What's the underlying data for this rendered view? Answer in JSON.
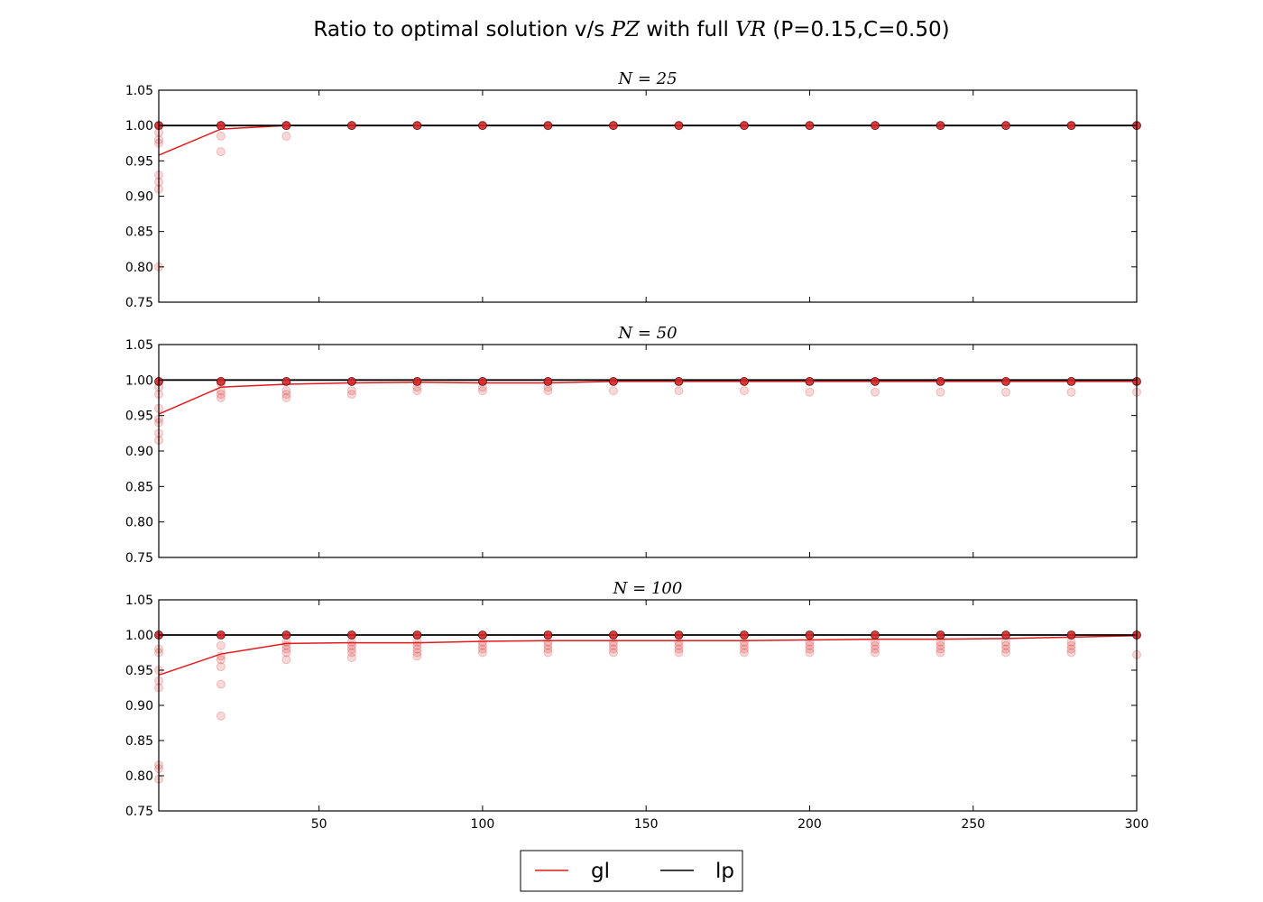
{
  "figure": {
    "title_plain": "Ratio to optimal solution v/s ",
    "title_pz": "PZ",
    "title_mid": " with full ",
    "title_vr": "VR",
    "title_params": " (P=0.15,C=0.50)"
  },
  "legend": [
    {
      "label": "gl",
      "color": "#e41a1c"
    },
    {
      "label": "lp",
      "color": "#000000"
    }
  ],
  "colors": {
    "gl": "#e41a1c",
    "lp": "#000000",
    "points": "#d62728"
  },
  "chart_data": [
    {
      "type": "line",
      "title": "N = 25",
      "xlim": [
        1,
        300
      ],
      "ylim": [
        0.75,
        1.05
      ],
      "yticks": [
        "0.75",
        "0.80",
        "0.85",
        "0.90",
        "0.95",
        "1.00",
        "1.05"
      ],
      "xticks": [],
      "x": [
        1,
        20,
        40,
        60,
        80,
        100,
        120,
        140,
        160,
        180,
        200,
        220,
        240,
        260,
        280,
        300
      ],
      "series": [
        {
          "name": "gl",
          "values": [
            0.958,
            0.995,
            1.0,
            1.0,
            1.0,
            1.0,
            1.0,
            1.0,
            1.0,
            1.0,
            1.0,
            1.0,
            1.0,
            1.0,
            1.0,
            1.0
          ]
        },
        {
          "name": "lp",
          "values": [
            1.0,
            1.0,
            1.0,
            1.0,
            1.0,
            1.0,
            1.0,
            1.0,
            1.0,
            1.0,
            1.0,
            1.0,
            1.0,
            1.0,
            1.0,
            1.0
          ]
        }
      ],
      "samples": [
        [
          1,
          0.99
        ],
        [
          1,
          0.975
        ],
        [
          1,
          0.98
        ],
        [
          1,
          0.93
        ],
        [
          1,
          0.92
        ],
        [
          1,
          0.91
        ],
        [
          1,
          0.8
        ],
        [
          20,
          1.0
        ],
        [
          20,
          0.985
        ],
        [
          20,
          0.963
        ],
        [
          40,
          1.0
        ],
        [
          40,
          0.985
        ]
      ],
      "points": [
        [
          1,
          1.0
        ],
        [
          20,
          1.0
        ],
        [
          40,
          1.0
        ],
        [
          60,
          1.0
        ],
        [
          80,
          1.0
        ],
        [
          100,
          1.0
        ],
        [
          120,
          1.0
        ],
        [
          140,
          1.0
        ],
        [
          160,
          1.0
        ],
        [
          180,
          1.0
        ],
        [
          200,
          1.0
        ],
        [
          220,
          1.0
        ],
        [
          240,
          1.0
        ],
        [
          260,
          1.0
        ],
        [
          280,
          1.0
        ],
        [
          300,
          1.0
        ]
      ]
    },
    {
      "type": "line",
      "title": "N = 50",
      "xlim": [
        1,
        300
      ],
      "ylim": [
        0.75,
        1.05
      ],
      "yticks": [
        "0.75",
        "0.80",
        "0.85",
        "0.90",
        "0.95",
        "1.00",
        "1.05"
      ],
      "xticks": [],
      "x": [
        1,
        20,
        40,
        60,
        80,
        100,
        120,
        140,
        160,
        180,
        200,
        220,
        240,
        260,
        280,
        300
      ],
      "series": [
        {
          "name": "gl",
          "values": [
            0.952,
            0.99,
            0.994,
            0.996,
            0.997,
            0.996,
            0.996,
            0.998,
            0.998,
            0.998,
            0.998,
            0.998,
            0.998,
            0.998,
            0.998,
            0.998
          ]
        },
        {
          "name": "lp",
          "values": [
            1.0,
            1.0,
            1.0,
            1.0,
            1.0,
            1.0,
            1.0,
            1.0,
            1.0,
            1.0,
            1.0,
            1.0,
            1.0,
            1.0,
            1.0,
            1.0
          ]
        }
      ],
      "samples": [
        [
          1,
          0.99
        ],
        [
          1,
          0.98
        ],
        [
          1,
          0.96
        ],
        [
          1,
          0.945
        ],
        [
          1,
          0.94
        ],
        [
          1,
          0.925
        ],
        [
          1,
          0.915
        ],
        [
          20,
          0.995
        ],
        [
          20,
          0.985
        ],
        [
          20,
          0.98
        ],
        [
          20,
          0.975
        ],
        [
          40,
          0.985
        ],
        [
          40,
          0.98
        ],
        [
          40,
          0.975
        ],
        [
          60,
          0.985
        ],
        [
          60,
          0.98
        ],
        [
          80,
          0.99
        ],
        [
          80,
          0.985
        ],
        [
          100,
          0.99
        ],
        [
          100,
          0.985
        ],
        [
          120,
          0.99
        ],
        [
          120,
          0.985
        ],
        [
          140,
          0.985
        ],
        [
          160,
          0.985
        ],
        [
          180,
          0.985
        ],
        [
          200,
          0.983
        ],
        [
          220,
          0.983
        ],
        [
          240,
          0.983
        ],
        [
          260,
          0.983
        ],
        [
          280,
          0.983
        ],
        [
          300,
          0.983
        ]
      ],
      "points": [
        [
          1,
          0.998
        ],
        [
          20,
          0.998
        ],
        [
          40,
          0.998
        ],
        [
          60,
          0.998
        ],
        [
          80,
          0.998
        ],
        [
          100,
          0.998
        ],
        [
          120,
          0.998
        ],
        [
          140,
          0.998
        ],
        [
          160,
          0.998
        ],
        [
          180,
          0.998
        ],
        [
          200,
          0.998
        ],
        [
          220,
          0.998
        ],
        [
          240,
          0.998
        ],
        [
          260,
          0.998
        ],
        [
          280,
          0.998
        ],
        [
          300,
          0.998
        ]
      ]
    },
    {
      "type": "line",
      "title": "N = 100",
      "xlim": [
        1,
        300
      ],
      "ylim": [
        0.75,
        1.05
      ],
      "yticks": [
        "0.75",
        "0.80",
        "0.85",
        "0.90",
        "0.95",
        "1.00",
        "1.05"
      ],
      "xticks": [
        "50",
        "100",
        "150",
        "200",
        "250",
        "300"
      ],
      "xtick_values": [
        50,
        100,
        150,
        200,
        250,
        300
      ],
      "x": [
        1,
        20,
        40,
        60,
        80,
        100,
        120,
        140,
        160,
        180,
        200,
        220,
        240,
        260,
        280,
        300
      ],
      "series": [
        {
          "name": "gl",
          "values": [
            0.943,
            0.973,
            0.988,
            0.989,
            0.989,
            0.991,
            0.992,
            0.992,
            0.992,
            0.992,
            0.993,
            0.994,
            0.994,
            0.995,
            0.997,
            0.999
          ]
        },
        {
          "name": "lp",
          "values": [
            1.0,
            1.0,
            1.0,
            1.0,
            1.0,
            1.0,
            1.0,
            1.0,
            1.0,
            1.0,
            1.0,
            1.0,
            1.0,
            1.0,
            1.0,
            1.0
          ]
        }
      ],
      "samples": [
        [
          1,
          0.98
        ],
        [
          1,
          0.975
        ],
        [
          1,
          0.95
        ],
        [
          1,
          0.935
        ],
        [
          1,
          0.925
        ],
        [
          1,
          0.815
        ],
        [
          1,
          0.81
        ],
        [
          1,
          0.795
        ],
        [
          20,
          0.985
        ],
        [
          20,
          0.97
        ],
        [
          20,
          0.965
        ],
        [
          20,
          0.955
        ],
        [
          20,
          0.93
        ],
        [
          20,
          0.885
        ],
        [
          40,
          0.99
        ],
        [
          40,
          0.985
        ],
        [
          40,
          0.98
        ],
        [
          40,
          0.975
        ],
        [
          40,
          0.965
        ],
        [
          60,
          0.99
        ],
        [
          60,
          0.985
        ],
        [
          60,
          0.98
        ],
        [
          60,
          0.975
        ],
        [
          60,
          0.968
        ],
        [
          80,
          0.99
        ],
        [
          80,
          0.985
        ],
        [
          80,
          0.98
        ],
        [
          80,
          0.975
        ],
        [
          80,
          0.97
        ],
        [
          100,
          0.99
        ],
        [
          100,
          0.985
        ],
        [
          100,
          0.98
        ],
        [
          100,
          0.975
        ],
        [
          120,
          0.99
        ],
        [
          120,
          0.985
        ],
        [
          120,
          0.98
        ],
        [
          120,
          0.975
        ],
        [
          140,
          0.99
        ],
        [
          140,
          0.985
        ],
        [
          140,
          0.98
        ],
        [
          140,
          0.975
        ],
        [
          160,
          0.99
        ],
        [
          160,
          0.985
        ],
        [
          160,
          0.98
        ],
        [
          160,
          0.975
        ],
        [
          180,
          0.99
        ],
        [
          180,
          0.985
        ],
        [
          180,
          0.98
        ],
        [
          180,
          0.975
        ],
        [
          200,
          0.99
        ],
        [
          200,
          0.985
        ],
        [
          200,
          0.98
        ],
        [
          200,
          0.975
        ],
        [
          220,
          0.99
        ],
        [
          220,
          0.985
        ],
        [
          220,
          0.98
        ],
        [
          220,
          0.975
        ],
        [
          240,
          0.99
        ],
        [
          240,
          0.985
        ],
        [
          240,
          0.98
        ],
        [
          240,
          0.975
        ],
        [
          260,
          0.99
        ],
        [
          260,
          0.985
        ],
        [
          260,
          0.98
        ],
        [
          260,
          0.975
        ],
        [
          280,
          0.99
        ],
        [
          280,
          0.985
        ],
        [
          280,
          0.98
        ],
        [
          280,
          0.975
        ],
        [
          300,
          0.972
        ]
      ],
      "points": [
        [
          1,
          1.0
        ],
        [
          20,
          1.0
        ],
        [
          40,
          1.0
        ],
        [
          60,
          1.0
        ],
        [
          80,
          1.0
        ],
        [
          100,
          1.0
        ],
        [
          120,
          1.0
        ],
        [
          140,
          1.0
        ],
        [
          160,
          1.0
        ],
        [
          180,
          1.0
        ],
        [
          200,
          1.0
        ],
        [
          220,
          1.0
        ],
        [
          240,
          1.0
        ],
        [
          260,
          1.0
        ],
        [
          280,
          1.0
        ],
        [
          300,
          1.0
        ]
      ]
    }
  ]
}
